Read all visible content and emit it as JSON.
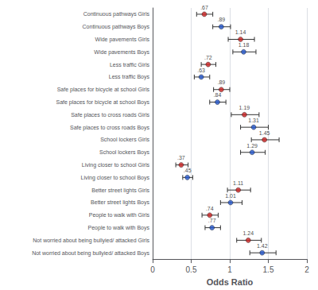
{
  "chart_data": {
    "type": "scatter",
    "orientation": "horizontal",
    "xlabel": "Odds Ratio",
    "categories": [
      "Continuous pathways Girls",
      "Continuous pathways Boys",
      "Wide pavements Girls",
      "Wide pavements Boys",
      "Less traffic Girls",
      "Less traffic Boys",
      "Safe places for bicycle at school Girls",
      "Safe places for bicycle at school Boys",
      "Safe places to cross roads Girls",
      "Safe places to cross roads Boys",
      "School lockers Girls",
      "School lockers Boys",
      "Living closer to school Girls",
      "Living closer to school Boys",
      "Better street lights Girls",
      "Better street lights Boys",
      "People to walk with Girls",
      "People to walk with Boys",
      "Not worried about being bullyied/ attacked Girls",
      "Not worried about being bullyied/ attacked Boys"
    ],
    "values": [
      0.67,
      0.89,
      1.14,
      1.18,
      0.72,
      0.63,
      0.89,
      0.84,
      1.19,
      1.31,
      1.45,
      1.29,
      0.37,
      0.45,
      1.11,
      1.01,
      0.74,
      0.77,
      1.24,
      1.42
    ],
    "value_labels": [
      ".67",
      ".89",
      "1.14",
      "1.18",
      ".72",
      ".63",
      ".89",
      ".84",
      "1.19",
      "1.31",
      "1.45",
      "1.29",
      ".37",
      ".45",
      "1.11",
      "1.01",
      ".74",
      ".77",
      "1.24",
      "1.42"
    ],
    "ci_lower": [
      0.57,
      0.78,
      0.98,
      1.04,
      0.63,
      0.54,
      0.79,
      0.74,
      1.02,
      1.14,
      1.28,
      1.14,
      0.3,
      0.39,
      0.97,
      0.88,
      0.64,
      0.68,
      1.09,
      1.26
    ],
    "ci_upper": [
      0.78,
      1.01,
      1.32,
      1.34,
      0.82,
      0.74,
      1.0,
      0.95,
      1.38,
      1.5,
      1.64,
      1.46,
      0.46,
      0.52,
      1.27,
      1.16,
      0.85,
      0.88,
      1.41,
      1.6
    ],
    "colors": [
      "#cc2222",
      "#2255cc",
      "#cc2222",
      "#2255cc",
      "#cc2222",
      "#2255cc",
      "#cc2222",
      "#2255cc",
      "#cc2222",
      "#2255cc",
      "#cc2222",
      "#2255cc",
      "#cc2222",
      "#2255cc",
      "#cc2222",
      "#2255cc",
      "#cc2222",
      "#2255cc",
      "#cc2222",
      "#2255cc"
    ],
    "data_labels": true,
    "xlim": [
      0,
      2
    ],
    "xticks": [
      0,
      0.5,
      1,
      1.5,
      2
    ],
    "grid": true
  }
}
